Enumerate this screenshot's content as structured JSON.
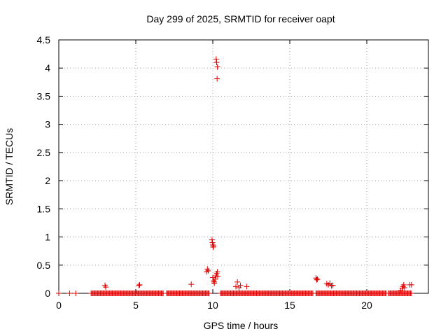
{
  "chart_data": {
    "type": "scatter",
    "title": "Day 299 of 2025, SRMTID for receiver oapt",
    "xlabel": "GPS time / hours",
    "ylabel": "SRMTID / TECUs",
    "xlim": [
      0,
      24
    ],
    "ylim": [
      0,
      4.5
    ],
    "x_ticks": [
      "0",
      "5",
      "10",
      "15",
      "20"
    ],
    "y_ticks": [
      "0",
      "0.5",
      "1",
      "1.5",
      "2",
      "2.5",
      "3",
      "3.5",
      "4",
      "4.5"
    ],
    "grid": true,
    "legend": "none",
    "marker": "plus",
    "color": "#e00000",
    "baseline_segments": [
      [
        2.1,
        6.8
      ],
      [
        7.0,
        9.8
      ],
      [
        10.5,
        16.5
      ],
      [
        16.7,
        21.3
      ],
      [
        21.4,
        22.9
      ]
    ],
    "baseline_y": 0,
    "series": [
      {
        "values": [
          [
            0.0,
            0
          ],
          [
            0.7,
            0
          ],
          [
            1.1,
            0
          ],
          [
            3.0,
            0.14
          ],
          [
            3.05,
            0.11
          ],
          [
            5.2,
            0.14
          ],
          [
            5.25,
            0.15
          ],
          [
            8.6,
            0.16
          ],
          [
            9.6,
            0.38
          ],
          [
            9.65,
            0.43
          ],
          [
            9.7,
            0.4
          ],
          [
            9.95,
            0.95
          ],
          [
            9.98,
            0.9
          ],
          [
            10.0,
            0.86
          ],
          [
            10.02,
            0.82
          ],
          [
            10.05,
            0.84
          ],
          [
            10.0,
            0.28
          ],
          [
            10.05,
            0.22
          ],
          [
            10.1,
            0.18
          ],
          [
            10.15,
            0.25
          ],
          [
            10.2,
            0.31
          ],
          [
            10.25,
            0.35
          ],
          [
            10.3,
            0.38
          ],
          [
            10.32,
            0.3
          ],
          [
            10.1,
            0.2
          ],
          [
            10.22,
            4.16
          ],
          [
            10.25,
            4.1
          ],
          [
            10.3,
            4.02
          ],
          [
            10.28,
            3.81
          ],
          [
            11.5,
            0.12
          ],
          [
            11.6,
            0.2
          ],
          [
            11.7,
            0.1
          ],
          [
            11.8,
            0.14
          ],
          [
            12.2,
            0.12
          ],
          [
            16.7,
            0.27
          ],
          [
            16.75,
            0.24
          ],
          [
            16.8,
            0.25
          ],
          [
            17.4,
            0.17
          ],
          [
            17.5,
            0.15
          ],
          [
            17.6,
            0.18
          ],
          [
            17.7,
            0.13
          ],
          [
            17.8,
            0.14
          ],
          [
            22.2,
            0.05
          ],
          [
            22.3,
            0.09
          ],
          [
            22.35,
            0.12
          ],
          [
            22.4,
            0.15
          ],
          [
            22.45,
            0.1
          ],
          [
            22.8,
            0.15
          ],
          [
            22.9,
            0.15
          ]
        ]
      }
    ]
  }
}
